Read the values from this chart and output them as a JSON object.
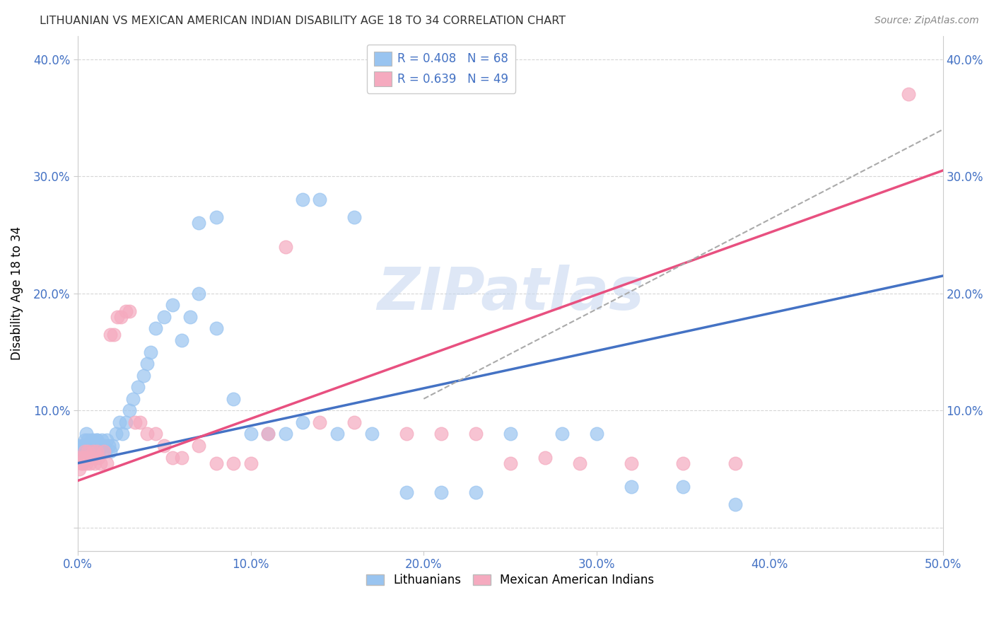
{
  "title": "LITHUANIAN VS MEXICAN AMERICAN INDIAN DISABILITY AGE 18 TO 34 CORRELATION CHART",
  "source": "Source: ZipAtlas.com",
  "ylabel": "Disability Age 18 to 34",
  "xlim": [
    0.0,
    0.5
  ],
  "ylim": [
    -0.02,
    0.42
  ],
  "blue_color": "#99C4F0",
  "pink_color": "#F5AABF",
  "blue_line_color": "#4472C4",
  "pink_line_color": "#E85080",
  "dashed_line_color": "#AAAAAA",
  "watermark_text": "ZIPatlas",
  "watermark_color": "#C8D8F0",
  "legend_blue_label": "R = 0.408   N = 68",
  "legend_pink_label": "R = 0.639   N = 49",
  "legend_bottom_blue": "Lithuanians",
  "legend_bottom_pink": "Mexican American Indians",
  "blue_line_x0": 0.0,
  "blue_line_y0": 0.055,
  "blue_line_x1": 0.5,
  "blue_line_y1": 0.215,
  "pink_line_x0": 0.0,
  "pink_line_y0": 0.04,
  "pink_line_x1": 0.5,
  "pink_line_y1": 0.305,
  "dash_line_x0": 0.2,
  "dash_line_y0": 0.11,
  "dash_line_x1": 0.5,
  "dash_line_y1": 0.34,
  "blue_x": [
    0.001,
    0.001,
    0.002,
    0.003,
    0.003,
    0.004,
    0.004,
    0.005,
    0.005,
    0.006,
    0.006,
    0.007,
    0.007,
    0.008,
    0.008,
    0.009,
    0.009,
    0.01,
    0.01,
    0.011,
    0.011,
    0.012,
    0.013,
    0.014,
    0.015,
    0.016,
    0.017,
    0.018,
    0.019,
    0.02,
    0.022,
    0.024,
    0.026,
    0.028,
    0.03,
    0.032,
    0.035,
    0.038,
    0.04,
    0.042,
    0.045,
    0.05,
    0.055,
    0.06,
    0.065,
    0.07,
    0.08,
    0.09,
    0.1,
    0.11,
    0.12,
    0.13,
    0.15,
    0.17,
    0.19,
    0.21,
    0.23,
    0.25,
    0.28,
    0.3,
    0.32,
    0.35,
    0.38,
    0.13,
    0.14,
    0.16,
    0.07,
    0.08
  ],
  "blue_y": [
    0.06,
    0.07,
    0.065,
    0.07,
    0.065,
    0.07,
    0.075,
    0.065,
    0.08,
    0.07,
    0.075,
    0.065,
    0.07,
    0.075,
    0.065,
    0.07,
    0.075,
    0.065,
    0.07,
    0.075,
    0.075,
    0.065,
    0.07,
    0.075,
    0.07,
    0.065,
    0.075,
    0.07,
    0.065,
    0.07,
    0.08,
    0.09,
    0.08,
    0.09,
    0.1,
    0.11,
    0.12,
    0.13,
    0.14,
    0.15,
    0.17,
    0.18,
    0.19,
    0.16,
    0.18,
    0.2,
    0.17,
    0.11,
    0.08,
    0.08,
    0.08,
    0.09,
    0.08,
    0.08,
    0.03,
    0.03,
    0.03,
    0.08,
    0.08,
    0.08,
    0.035,
    0.035,
    0.02,
    0.28,
    0.28,
    0.265,
    0.26,
    0.265
  ],
  "pink_x": [
    0.001,
    0.001,
    0.002,
    0.003,
    0.003,
    0.004,
    0.004,
    0.005,
    0.006,
    0.007,
    0.008,
    0.009,
    0.01,
    0.011,
    0.012,
    0.013,
    0.015,
    0.017,
    0.019,
    0.021,
    0.023,
    0.025,
    0.028,
    0.03,
    0.033,
    0.036,
    0.04,
    0.045,
    0.05,
    0.055,
    0.06,
    0.07,
    0.08,
    0.09,
    0.1,
    0.11,
    0.12,
    0.14,
    0.16,
    0.19,
    0.21,
    0.23,
    0.25,
    0.27,
    0.29,
    0.32,
    0.35,
    0.38,
    0.48
  ],
  "pink_y": [
    0.05,
    0.06,
    0.055,
    0.06,
    0.055,
    0.06,
    0.065,
    0.055,
    0.065,
    0.055,
    0.06,
    0.065,
    0.055,
    0.065,
    0.06,
    0.055,
    0.065,
    0.055,
    0.165,
    0.165,
    0.18,
    0.18,
    0.185,
    0.185,
    0.09,
    0.09,
    0.08,
    0.08,
    0.07,
    0.06,
    0.06,
    0.07,
    0.055,
    0.055,
    0.055,
    0.08,
    0.24,
    0.09,
    0.09,
    0.08,
    0.08,
    0.08,
    0.055,
    0.06,
    0.055,
    0.055,
    0.055,
    0.055,
    0.37
  ]
}
